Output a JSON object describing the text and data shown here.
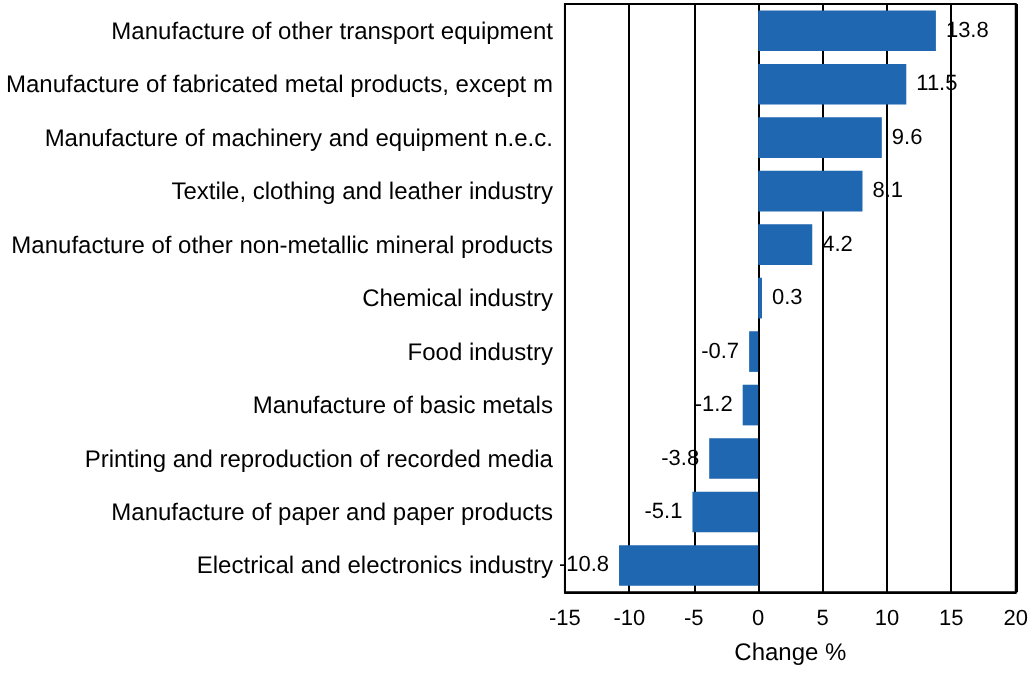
{
  "chart_data": {
    "type": "bar",
    "orientation": "horizontal",
    "xlabel": "Change %",
    "categories": [
      "Manufacture of other transport equipment",
      "Manufacture of fabricated metal products, except m",
      "Manufacture of machinery and equipment n.e.c.",
      "Textile, clothing and leather industry",
      "Manufacture of other non-metallic mineral products",
      "Chemical industry",
      "Food industry",
      "Manufacture of basic metals",
      "Printing and reproduction of recorded media",
      "Manufacture of paper and paper products",
      "Electrical and electronics industry"
    ],
    "values": [
      13.8,
      11.5,
      9.6,
      8.1,
      4.2,
      0.3,
      -0.7,
      -1.2,
      -3.8,
      -5.1,
      -10.8
    ],
    "color": "#1f67b1",
    "data_labels": true,
    "grid": "x",
    "xlim": [
      -15,
      20
    ],
    "xticks": [
      -15,
      -10,
      -5,
      0,
      5,
      10,
      15,
      20
    ]
  }
}
